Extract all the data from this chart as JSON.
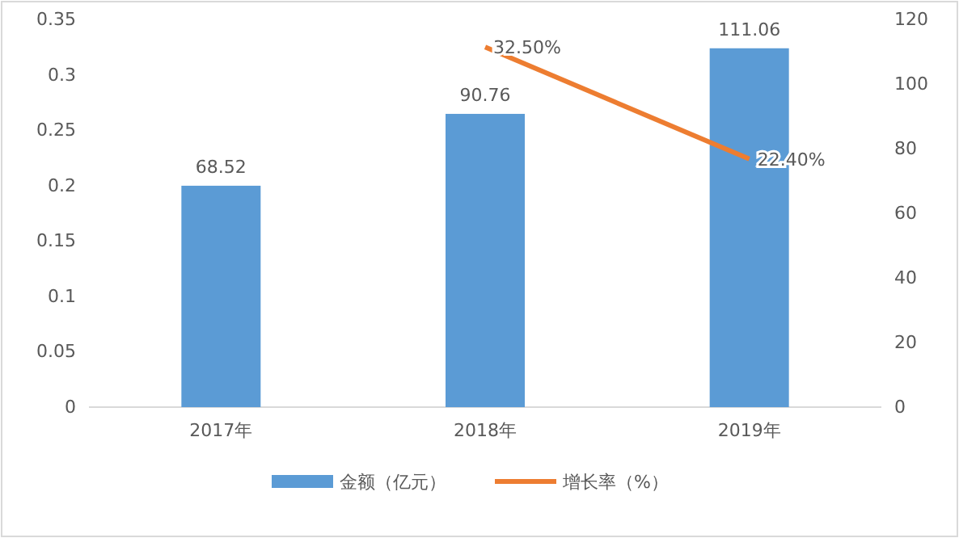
{
  "chart_data": {
    "type": "bar",
    "categories": [
      "2017年",
      "2018年",
      "2019年"
    ],
    "series": [
      {
        "name": "金额（亿元）",
        "axis": "y2",
        "color": "#5b9bd5",
        "values": [
          68.52,
          90.76,
          111.06
        ],
        "value_labels": [
          "68.52",
          "90.76",
          "111.06"
        ]
      },
      {
        "name": "增长率（%）",
        "type": "line",
        "axis": "y",
        "color": "#ed7d31",
        "values": [
          null,
          0.325,
          0.224
        ],
        "value_labels": [
          null,
          "32.50%",
          "22.40%"
        ],
        "marker": "none"
      }
    ],
    "ylim": [
      0,
      0.35
    ],
    "yticks": [
      0,
      0.05,
      0.1,
      0.15,
      0.2,
      0.25,
      0.3,
      0.35
    ],
    "y2lim": [
      0,
      120
    ],
    "y2ticks": [
      0,
      20,
      40,
      60,
      80,
      100,
      120
    ],
    "grid": false,
    "legend": "bottom"
  }
}
